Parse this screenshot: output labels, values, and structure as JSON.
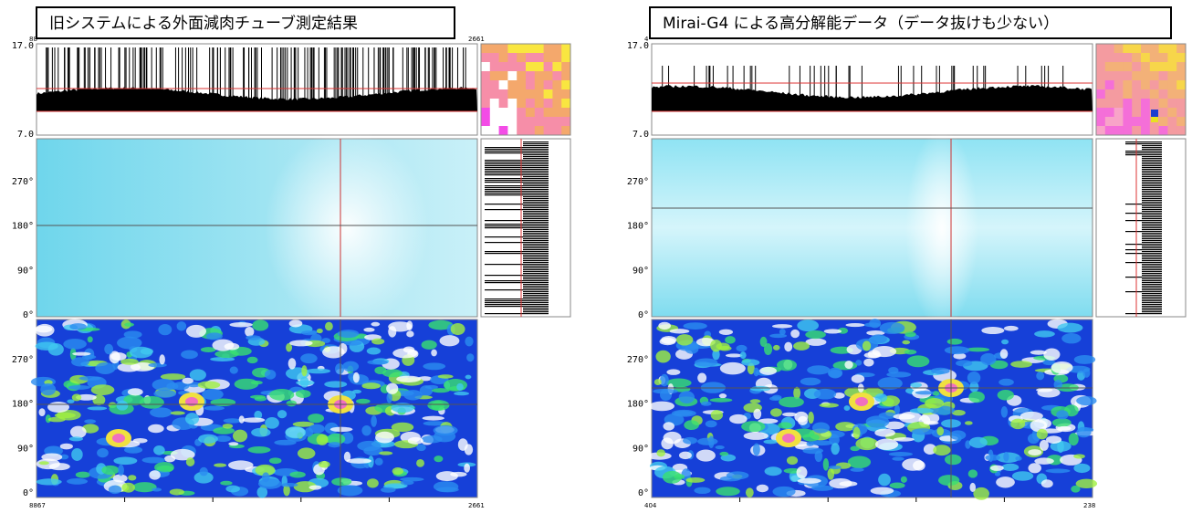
{
  "panels": [
    {
      "title": "旧システムによる外面減肉チューブ測定結果",
      "thickness_ticks": [
        "17.0",
        "7.0"
      ],
      "angle_ticks": [
        "270°",
        "180°",
        "90°",
        "0°"
      ],
      "top_start": "88",
      "top_end": "2661",
      "bottom_start": "8867",
      "bottom_end": "2661"
    },
    {
      "title": "Mirai-G4 による高分解能データ（データ抜けも少ない）",
      "thickness_ticks": [
        "17.0",
        "7.0"
      ],
      "angle_ticks": [
        "270°",
        "180°",
        "90°",
        "0°"
      ],
      "top_start": "4",
      "bottom_start": "404",
      "bottom_end": "238"
    }
  ]
}
